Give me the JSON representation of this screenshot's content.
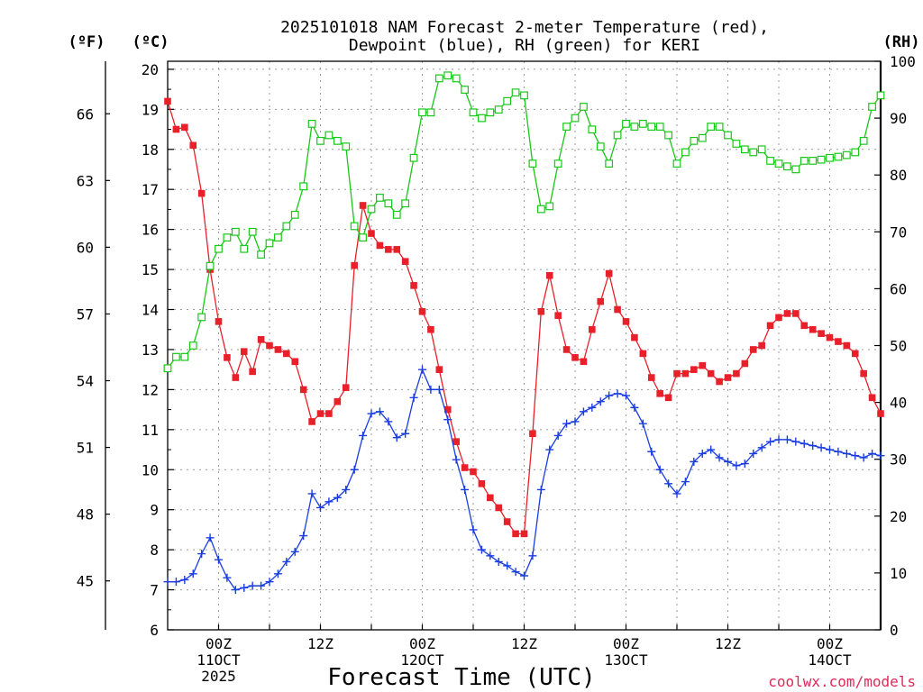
{
  "chart_data": {
    "type": "line",
    "title": "2025101018 NAM Forecast 2-meter Temperature (red),",
    "subtitle": "Dewpoint (blue), RH (green) for KERI",
    "xlabel": "Forecast Time (UTC)",
    "credit": "coolwx.com/models",
    "units": {
      "fahrenheit": "(ºF)",
      "celsius": "(ºC)",
      "rh": "(RH)"
    },
    "x_ticks": [
      {
        "hour": 6,
        "l1": "00Z",
        "l2": "11OCT",
        "l3": "2025"
      },
      {
        "hour": 18,
        "l1": "12Z",
        "l2": "",
        "l3": ""
      },
      {
        "hour": 30,
        "l1": "00Z",
        "l2": "12OCT",
        "l3": ""
      },
      {
        "hour": 42,
        "l1": "12Z",
        "l2": "",
        "l3": ""
      },
      {
        "hour": 54,
        "l1": "00Z",
        "l2": "13OCT",
        "l3": ""
      },
      {
        "hour": 66,
        "l1": "12Z",
        "l2": "",
        "l3": ""
      },
      {
        "hour": 78,
        "l1": "00Z",
        "l2": "14OCT",
        "l3": ""
      }
    ],
    "xlim": [
      0,
      84
    ],
    "celsius_ticks": [
      6,
      7,
      8,
      9,
      10,
      11,
      12,
      13,
      14,
      15,
      16,
      17,
      18,
      19,
      20
    ],
    "ylim_celsius": [
      6,
      20.2
    ],
    "fahrenheit_ticks": [
      45,
      48,
      51,
      54,
      57,
      60,
      63,
      66
    ],
    "rh_ticks": [
      0,
      10,
      20,
      30,
      40,
      50,
      60,
      70,
      80,
      90,
      100
    ],
    "ylim_rh": [
      0,
      100
    ],
    "grid": true,
    "colors": {
      "temperature": "#e8202a",
      "dewpoint": "#1a3de0",
      "rh": "#18c818"
    },
    "series": [
      {
        "name": "Temperature",
        "axis": "celsius",
        "marker": "filled-square",
        "x": [
          0,
          1,
          2,
          3,
          4,
          5,
          6,
          7,
          8,
          9,
          10,
          11,
          12,
          13,
          14,
          15,
          16,
          17,
          18,
          19,
          20,
          21,
          22,
          23,
          24,
          25,
          26,
          27,
          28,
          29,
          30,
          31,
          32,
          33,
          34,
          35,
          36,
          37,
          38,
          39,
          40,
          41,
          42,
          43,
          44,
          45,
          46,
          47,
          48,
          49,
          50,
          51,
          52,
          53,
          54,
          55,
          56,
          57,
          58,
          59,
          60,
          61,
          62,
          63,
          64,
          65,
          66,
          67,
          68,
          69,
          70,
          71,
          72,
          73,
          74,
          75,
          76,
          77,
          78,
          79,
          80,
          81,
          82,
          83,
          84
        ],
        "values": [
          19.2,
          18.5,
          18.55,
          18.1,
          16.9,
          15.0,
          13.7,
          12.8,
          12.3,
          12.95,
          12.45,
          13.25,
          13.1,
          13.0,
          12.9,
          12.7,
          12.0,
          11.2,
          11.4,
          11.4,
          11.7,
          12.05,
          15.1,
          16.6,
          15.9,
          15.6,
          15.5,
          15.5,
          15.2,
          14.6,
          13.95,
          13.5,
          12.5,
          11.5,
          10.7,
          10.05,
          9.95,
          9.65,
          9.3,
          9.05,
          8.7,
          8.4,
          8.4,
          10.9,
          13.95,
          14.85,
          13.85,
          13.0,
          12.8,
          12.7,
          13.5,
          14.2,
          14.9,
          14.0,
          13.7,
          13.3,
          12.9,
          12.3,
          11.9,
          11.8,
          12.4,
          12.4,
          12.5,
          12.6,
          12.4,
          12.2,
          12.3,
          12.4,
          12.65,
          13.0,
          13.1,
          13.6,
          13.8,
          13.9,
          13.9,
          13.6,
          13.5,
          13.4,
          13.3,
          13.2,
          13.1,
          12.9,
          12.4,
          11.8,
          11.4
        ]
      },
      {
        "name": "Dewpoint",
        "axis": "celsius",
        "marker": "plus",
        "x": [
          0,
          1,
          2,
          3,
          4,
          5,
          6,
          7,
          8,
          9,
          10,
          11,
          12,
          13,
          14,
          15,
          16,
          17,
          18,
          19,
          20,
          21,
          22,
          23,
          24,
          25,
          26,
          27,
          28,
          29,
          30,
          31,
          32,
          33,
          34,
          35,
          36,
          37,
          38,
          39,
          40,
          41,
          42,
          43,
          44,
          45,
          46,
          47,
          48,
          49,
          50,
          51,
          52,
          53,
          54,
          55,
          56,
          57,
          58,
          59,
          60,
          61,
          62,
          63,
          64,
          65,
          66,
          67,
          68,
          69,
          70,
          71,
          72,
          73,
          74,
          75,
          76,
          77,
          78,
          79,
          80,
          81,
          82,
          83,
          84
        ],
        "values": [
          7.2,
          7.2,
          7.25,
          7.4,
          7.9,
          8.3,
          7.75,
          7.3,
          7.0,
          7.05,
          7.1,
          7.1,
          7.2,
          7.4,
          7.7,
          7.95,
          8.35,
          9.4,
          9.05,
          9.2,
          9.3,
          9.5,
          10.0,
          10.85,
          11.4,
          11.45,
          11.2,
          10.8,
          10.9,
          11.8,
          12.5,
          12.0,
          12.0,
          11.25,
          10.25,
          9.5,
          8.5,
          8.0,
          7.85,
          7.7,
          7.6,
          7.45,
          7.35,
          7.85,
          9.5,
          10.5,
          10.85,
          11.15,
          11.2,
          11.45,
          11.55,
          11.7,
          11.85,
          11.9,
          11.85,
          11.55,
          11.15,
          10.45,
          10.0,
          9.65,
          9.4,
          9.7,
          10.2,
          10.4,
          10.5,
          10.3,
          10.2,
          10.1,
          10.15,
          10.4,
          10.55,
          10.7,
          10.75,
          10.75,
          10.7,
          10.65,
          10.6,
          10.55,
          10.5,
          10.45,
          10.4,
          10.35,
          10.3,
          10.4,
          10.35
        ]
      },
      {
        "name": "RH",
        "axis": "rh",
        "marker": "open-square",
        "x": [
          0,
          1,
          2,
          3,
          4,
          5,
          6,
          7,
          8,
          9,
          10,
          11,
          12,
          13,
          14,
          15,
          16,
          17,
          18,
          19,
          20,
          21,
          22,
          23,
          24,
          25,
          26,
          27,
          28,
          29,
          30,
          31,
          32,
          33,
          34,
          35,
          36,
          37,
          38,
          39,
          40,
          41,
          42,
          43,
          44,
          45,
          46,
          47,
          48,
          49,
          50,
          51,
          52,
          53,
          54,
          55,
          56,
          57,
          58,
          59,
          60,
          61,
          62,
          63,
          64,
          65,
          66,
          67,
          68,
          69,
          70,
          71,
          72,
          73,
          74,
          75,
          76,
          77,
          78,
          79,
          80,
          81,
          82,
          83,
          84
        ],
        "values": [
          46,
          48,
          48,
          50,
          55,
          64,
          67,
          69,
          70,
          67,
          70,
          66,
          68,
          69,
          71,
          73,
          78,
          89,
          86,
          87,
          86,
          85,
          71,
          69,
          74,
          76,
          75,
          73,
          75,
          83,
          91,
          91,
          97,
          97.5,
          97,
          95,
          91,
          90,
          91,
          91.5,
          93,
          94.5,
          94,
          82,
          74,
          74.5,
          82,
          88.5,
          90,
          92,
          88,
          85,
          82,
          87,
          89,
          88.5,
          89,
          88.5,
          88.5,
          87,
          82,
          84,
          86,
          86.5,
          88.5,
          88.5,
          87,
          85.5,
          84.5,
          84,
          84.5,
          82.5,
          82,
          81.5,
          81,
          82.5,
          82.5,
          82.7,
          83,
          83.2,
          83.5,
          84,
          86,
          92,
          94
        ]
      }
    ]
  }
}
